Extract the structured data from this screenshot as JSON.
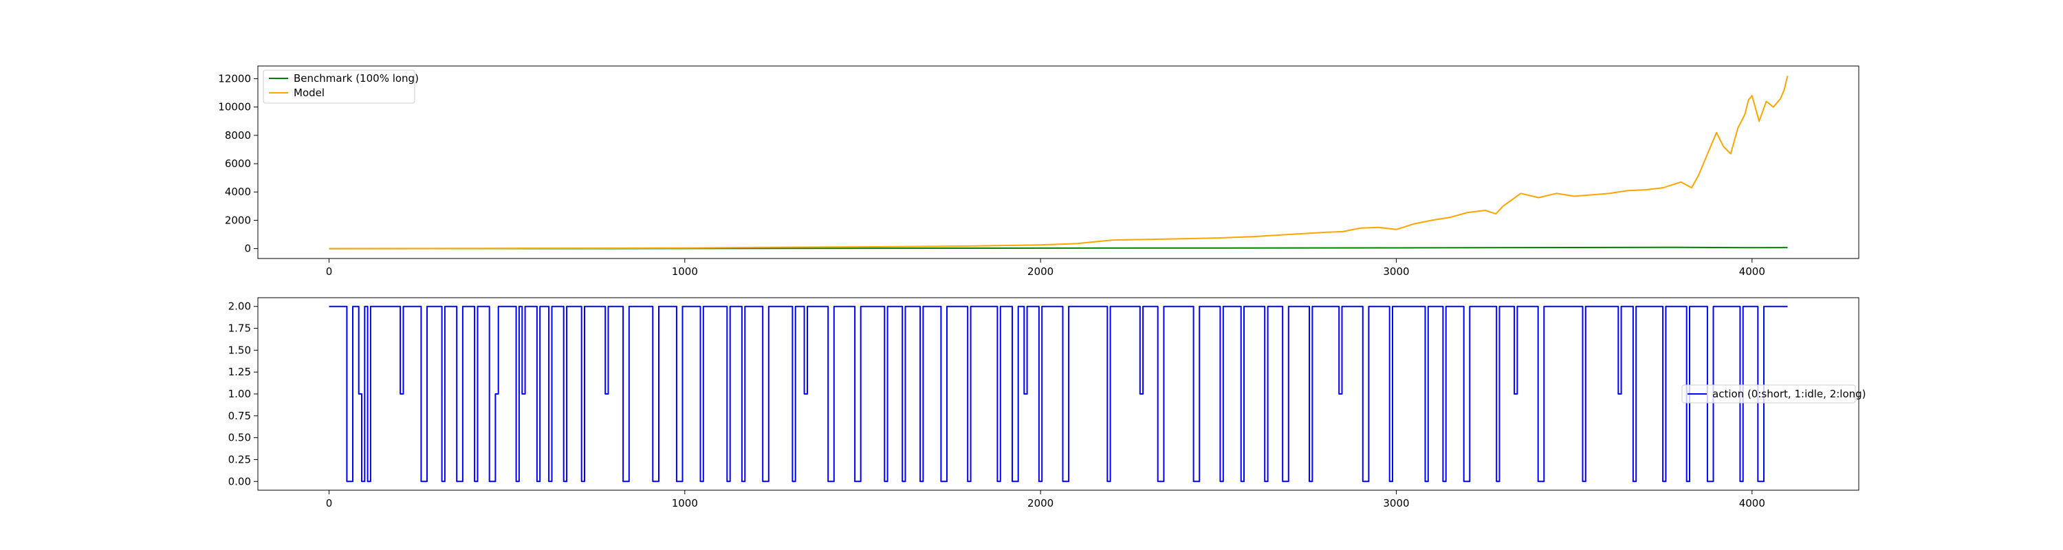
{
  "chart_data": [
    {
      "type": "line",
      "title": "",
      "xlabel": "",
      "ylabel": "",
      "xlim": [
        -200,
        4300
      ],
      "ylim": [
        -700,
        12900
      ],
      "xticks": [
        0,
        1000,
        2000,
        3000,
        4000
      ],
      "yticks": [
        0,
        2000,
        4000,
        6000,
        8000,
        10000,
        12000
      ],
      "grid": false,
      "legend_position": "upper-left",
      "series": [
        {
          "name": "Benchmark (100% long)",
          "color": "#008000",
          "x": [
            0,
            500,
            1000,
            1500,
            2000,
            2500,
            3000,
            3500,
            3800,
            4000,
            4100
          ],
          "y": [
            0,
            3,
            10,
            22,
            35,
            45,
            55,
            75,
            90,
            65,
            70
          ]
        },
        {
          "name": "Model",
          "color": "#ffa500",
          "x": [
            0,
            500,
            1000,
            1200,
            1500,
            1800,
            2000,
            2100,
            2200,
            2300,
            2400,
            2500,
            2600,
            2700,
            2800,
            2850,
            2900,
            2950,
            3000,
            3050,
            3100,
            3150,
            3200,
            3250,
            3280,
            3300,
            3350,
            3400,
            3450,
            3500,
            3550,
            3600,
            3650,
            3700,
            3750,
            3800,
            3830,
            3850,
            3880,
            3900,
            3920,
            3940,
            3960,
            3980,
            3990,
            4000,
            4020,
            4040,
            4060,
            4080,
            4090,
            4100
          ],
          "y": [
            0,
            20,
            40,
            80,
            120,
            180,
            260,
            350,
            600,
            650,
            700,
            750,
            850,
            1000,
            1150,
            1200,
            1450,
            1500,
            1350,
            1750,
            2000,
            2200,
            2550,
            2700,
            2450,
            3000,
            3900,
            3600,
            3900,
            3700,
            3800,
            3900,
            4100,
            4150,
            4300,
            4700,
            4300,
            5200,
            7000,
            8200,
            7200,
            6700,
            8500,
            9500,
            10500,
            10800,
            9000,
            10400,
            10000,
            10600,
            11200,
            12200
          ]
        }
      ]
    },
    {
      "type": "line",
      "title": "",
      "xlabel": "",
      "ylabel": "",
      "xlim": [
        -200,
        4300
      ],
      "ylim": [
        -0.1,
        2.1
      ],
      "xticks": [
        0,
        1000,
        2000,
        3000,
        4000
      ],
      "yticks": [
        0.0,
        0.25,
        0.5,
        0.75,
        1.0,
        1.25,
        1.5,
        1.75,
        2.0
      ],
      "ytick_labels": [
        "0.00",
        "0.25",
        "0.50",
        "0.75",
        "1.00",
        "1.25",
        "1.50",
        "1.75",
        "2.00"
      ],
      "grid": false,
      "legend_position": "center-right",
      "series": [
        {
          "name": "action (0:short, 1:idle, 2:long)",
          "color": "#0000ff",
          "values": [
            2,
            2,
            2,
            2,
            2,
            2,
            0,
            0,
            2,
            2,
            1,
            0,
            2,
            0,
            2,
            2,
            2,
            2,
            2,
            2,
            2,
            2,
            2,
            2,
            1,
            2,
            2,
            2,
            2,
            2,
            2,
            0,
            0,
            2,
            2,
            2,
            2,
            2,
            0,
            2,
            2,
            2,
            2,
            0,
            0,
            2,
            2,
            2,
            2,
            0,
            2,
            2,
            2,
            2,
            0,
            0,
            1,
            2,
            2,
            2,
            2,
            2,
            2,
            0,
            2,
            1,
            2,
            2,
            2,
            2,
            0,
            2,
            2,
            2,
            0,
            2,
            2,
            2,
            2,
            0,
            2,
            2,
            2,
            2,
            2,
            0,
            2,
            2,
            2,
            2,
            2,
            2,
            2,
            1,
            2,
            2,
            2,
            2,
            2,
            0,
            0,
            2,
            2,
            2,
            2,
            2,
            2,
            2,
            2,
            0,
            0,
            2,
            2,
            2,
            2,
            2,
            2,
            0,
            0,
            2,
            2,
            2,
            2,
            2,
            2,
            0,
            2,
            2,
            2,
            2,
            2,
            2,
            2,
            2,
            0,
            2,
            2,
            2,
            2,
            0,
            2,
            2,
            2,
            2,
            2,
            2,
            0,
            0,
            2,
            2,
            2,
            2,
            2,
            2,
            2,
            2,
            0,
            2,
            2,
            2,
            1,
            2,
            2,
            2,
            2,
            2,
            2,
            2,
            0,
            0,
            2,
            2,
            2,
            2,
            2,
            2,
            2,
            0,
            0,
            2,
            2,
            2,
            2,
            2,
            2,
            2,
            2,
            0,
            2,
            2,
            2,
            2,
            2,
            0,
            2,
            2,
            2,
            2,
            2,
            0,
            2,
            2,
            2,
            2,
            2,
            2,
            0,
            0,
            2,
            2,
            2,
            2,
            2,
            2,
            2,
            0,
            2,
            2,
            2,
            2,
            2,
            2,
            2,
            2,
            2,
            0,
            2,
            2,
            2,
            2,
            0,
            0,
            2,
            2,
            1,
            2,
            2,
            2,
            2,
            0,
            2,
            2,
            2,
            2,
            2,
            2,
            2,
            0,
            0,
            2,
            2,
            2,
            2,
            2,
            2,
            2,
            2,
            2,
            2,
            2,
            2,
            2,
            0,
            2,
            2,
            2,
            2,
            2,
            2,
            2,
            2,
            2,
            2,
            1,
            2,
            2,
            2,
            2,
            2,
            0,
            0,
            2,
            2,
            2,
            2,
            2,
            2,
            2,
            2,
            2,
            2,
            0,
            0,
            2,
            2,
            2,
            2,
            2,
            2,
            2,
            0,
            2,
            2,
            2,
            2,
            2,
            2,
            0,
            2,
            2,
            2,
            2,
            2,
            2,
            2,
            0,
            2,
            2,
            2,
            2,
            2,
            0,
            0,
            2,
            2,
            2,
            2,
            2,
            2,
            2,
            0,
            2,
            2,
            2,
            2,
            2,
            2,
            2,
            2,
            2,
            1,
            2,
            2,
            2,
            2,
            2,
            2,
            2,
            0,
            0,
            2,
            2,
            2,
            2,
            2,
            2,
            2,
            0,
            2,
            2,
            2,
            2,
            2,
            2,
            2,
            2,
            2,
            2,
            2,
            0,
            2,
            2,
            2,
            2,
            2,
            0,
            2,
            2,
            2,
            2,
            2,
            2,
            0,
            0,
            2,
            2,
            2,
            2,
            2,
            2,
            2,
            2,
            2,
            0,
            2,
            2,
            2,
            2,
            2,
            1,
            2,
            2,
            2,
            2,
            2,
            2,
            2,
            0,
            0,
            2,
            2,
            2,
            2,
            2,
            2,
            2,
            2,
            2,
            2,
            2,
            2,
            2,
            0,
            2,
            2,
            2,
            2,
            2,
            2,
            2,
            2,
            2,
            2,
            2,
            1,
            2,
            2,
            2,
            2,
            0,
            2,
            2,
            2,
            2,
            2,
            2,
            2,
            2,
            2,
            0,
            2,
            2,
            2,
            2,
            2,
            2,
            2,
            0,
            2,
            2,
            2,
            2,
            2,
            2,
            0,
            0,
            2,
            2,
            2,
            2,
            2,
            2,
            2,
            2,
            2,
            0,
            2,
            2,
            2,
            2,
            2,
            0,
            0,
            2,
            2,
            2,
            2,
            2,
            2,
            2,
            2
          ]
        }
      ]
    }
  ]
}
